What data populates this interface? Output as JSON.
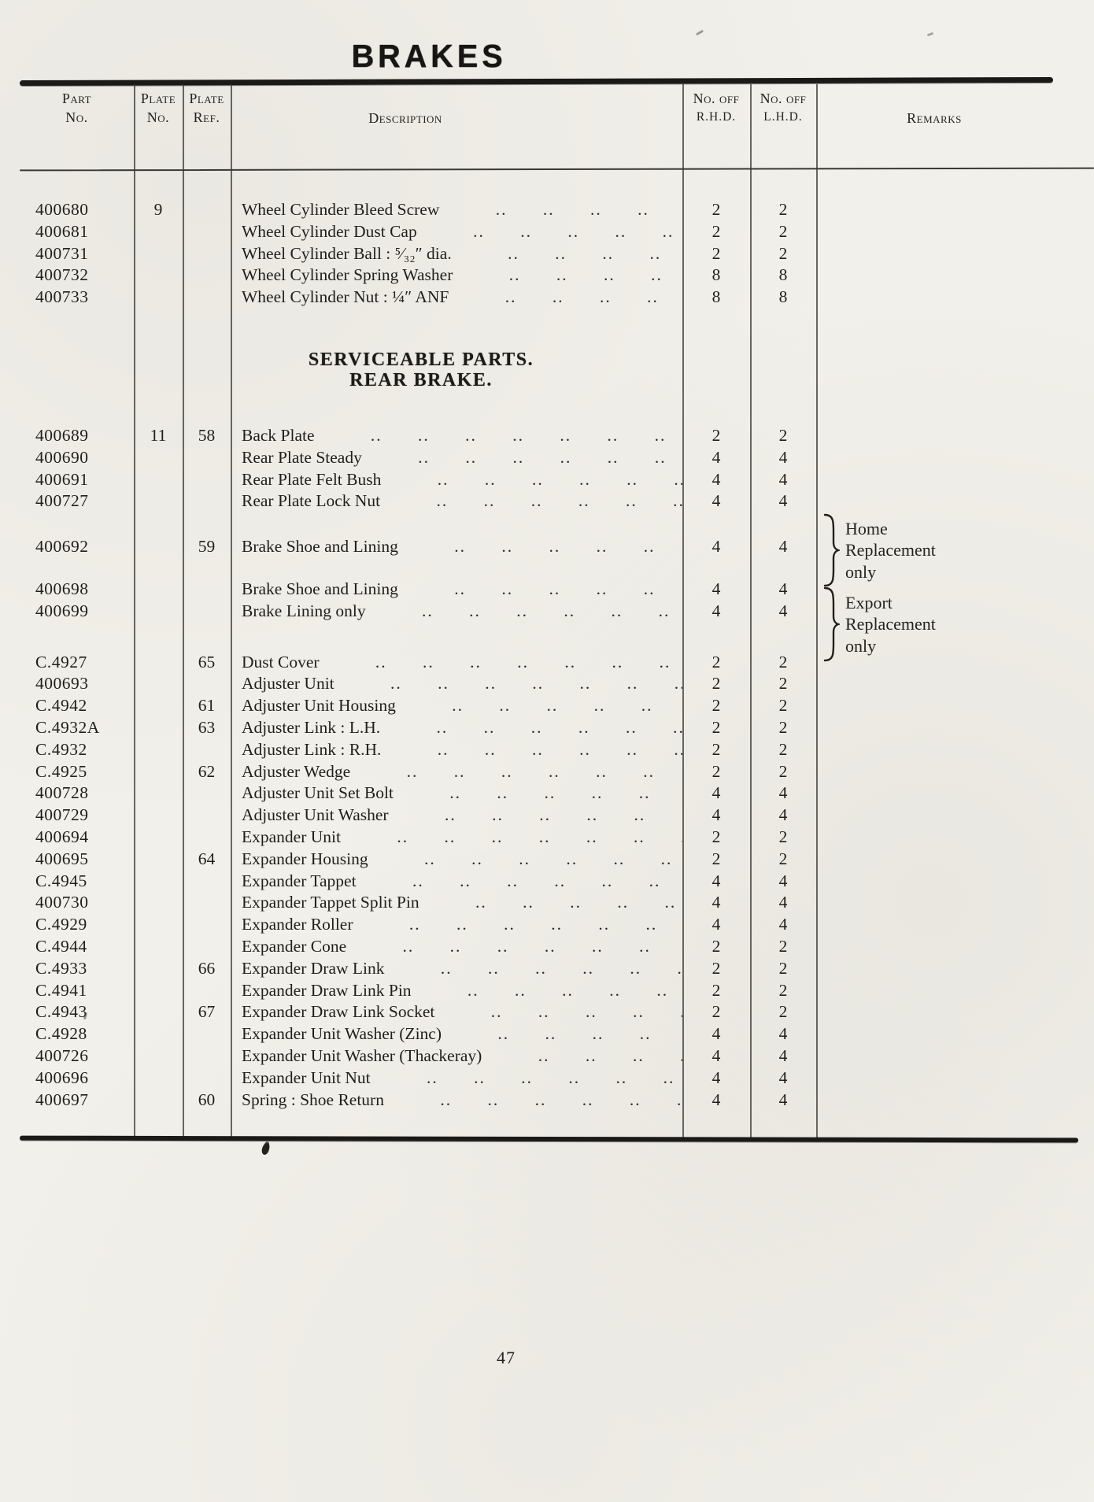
{
  "page": {
    "title": "BRAKES",
    "page_number": "47"
  },
  "table": {
    "headers": {
      "part": {
        "l1": "Part",
        "l2": "No."
      },
      "plate": {
        "l1": "Plate",
        "l2": "No."
      },
      "ref": {
        "l1": "Plate",
        "l2": "Ref."
      },
      "desc": {
        "l1": "Description"
      },
      "rhd": {
        "l1": "No. off",
        "l2": "R.H.D."
      },
      "lhd": {
        "l1": "No. off",
        "l2": "L.H.D."
      },
      "remarks": {
        "l1": "Remarks"
      }
    },
    "sections": [
      {
        "type": "items",
        "rows": [
          {
            "part": "400680",
            "plate": "9",
            "ref": "",
            "desc": "Wheel Cylinder Bleed Screw",
            "rhd": "2",
            "lhd": "2"
          },
          {
            "part": "400681",
            "plate": "",
            "ref": "",
            "desc": "Wheel Cylinder Dust Cap",
            "rhd": "2",
            "lhd": "2"
          },
          {
            "part": "400731",
            "plate": "",
            "ref": "",
            "desc": "Wheel Cylinder Ball :  ⁵⁄₃₂″ dia.",
            "rhd": "2",
            "lhd": "2"
          },
          {
            "part": "400732",
            "plate": "",
            "ref": "",
            "desc": "Wheel Cylinder Spring Washer",
            "rhd": "8",
            "lhd": "8"
          },
          {
            "part": "400733",
            "plate": "",
            "ref": "",
            "desc": "Wheel Cylinder Nut :  ¼″ ANF",
            "rhd": "8",
            "lhd": "8"
          }
        ]
      },
      {
        "type": "heading",
        "lines": [
          "SERVICEABLE PARTS.",
          "REAR BRAKE."
        ]
      },
      {
        "type": "items",
        "rows": [
          {
            "part": "400689",
            "plate": "11",
            "ref": "58",
            "desc": "Back Plate",
            "rhd": "2",
            "lhd": "2"
          },
          {
            "part": "400690",
            "plate": "",
            "ref": "",
            "desc": "Rear Plate Steady",
            "rhd": "4",
            "lhd": "4"
          },
          {
            "part": "400691",
            "plate": "",
            "ref": "",
            "desc": "Rear Plate Felt Bush",
            "rhd": "4",
            "lhd": "4"
          },
          {
            "part": "400727",
            "plate": "",
            "ref": "",
            "desc": "Rear Plate Lock Nut",
            "rhd": "4",
            "lhd": "4"
          }
        ]
      },
      {
        "type": "items",
        "rows": [
          {
            "part": "400692",
            "plate": "",
            "ref": "59",
            "desc": "Brake Shoe and Lining",
            "rhd": "4",
            "lhd": "4"
          }
        ]
      },
      {
        "type": "items",
        "rows": [
          {
            "part": "400698",
            "plate": "",
            "ref": "",
            "desc": "Brake Shoe and Lining",
            "rhd": "4",
            "lhd": "4"
          },
          {
            "part": "400699",
            "plate": "",
            "ref": "",
            "desc": "Brake Lining only",
            "rhd": "4",
            "lhd": "4"
          }
        ]
      },
      {
        "type": "items",
        "rows": [
          {
            "part": "C.4927",
            "plate": "",
            "ref": "65",
            "desc": "Dust Cover",
            "rhd": "2",
            "lhd": "2"
          },
          {
            "part": "400693",
            "plate": "",
            "ref": "",
            "desc": "Adjuster Unit",
            "rhd": "2",
            "lhd": "2"
          },
          {
            "part": "C.4942",
            "plate": "",
            "ref": "61",
            "desc": "Adjuster Unit Housing",
            "rhd": "2",
            "lhd": "2"
          },
          {
            "part": "C.4932A",
            "plate": "",
            "ref": "63",
            "desc": "Adjuster Link :  L.H.",
            "rhd": "2",
            "lhd": "2"
          },
          {
            "part": "C.4932",
            "plate": "",
            "ref": "",
            "desc": "Adjuster Link :  R.H.",
            "rhd": "2",
            "lhd": "2"
          },
          {
            "part": "C.4925",
            "plate": "",
            "ref": "62",
            "desc": "Adjuster Wedge",
            "rhd": "2",
            "lhd": "2"
          },
          {
            "part": "400728",
            "plate": "",
            "ref": "",
            "desc": "Adjuster Unit Set Bolt",
            "rhd": "4",
            "lhd": "4"
          },
          {
            "part": "400729",
            "plate": "",
            "ref": "",
            "desc": "Adjuster Unit Washer",
            "rhd": "4",
            "lhd": "4"
          },
          {
            "part": "400694",
            "plate": "",
            "ref": "",
            "desc": "Expander Unit",
            "rhd": "2",
            "lhd": "2"
          },
          {
            "part": "400695",
            "plate": "",
            "ref": "64",
            "desc": "Expander Housing",
            "rhd": "2",
            "lhd": "2"
          },
          {
            "part": "C.4945",
            "plate": "",
            "ref": "",
            "desc": "Expander Tappet",
            "rhd": "4",
            "lhd": "4"
          },
          {
            "part": "400730",
            "plate": "",
            "ref": "",
            "desc": "Expander Tappet Split Pin",
            "rhd": "4",
            "lhd": "4"
          },
          {
            "part": "C.4929",
            "plate": "",
            "ref": "",
            "desc": "Expander Roller",
            "rhd": "4",
            "lhd": "4"
          },
          {
            "part": "C.4944",
            "plate": "",
            "ref": "",
            "desc": "Expander Cone",
            "rhd": "2",
            "lhd": "2"
          },
          {
            "part": "C.4933",
            "plate": "",
            "ref": "66",
            "desc": "Expander Draw Link",
            "rhd": "2",
            "lhd": "2"
          },
          {
            "part": "C.4941",
            "plate": "",
            "ref": "",
            "desc": "Expander Draw Link Pin",
            "rhd": "2",
            "lhd": "2"
          },
          {
            "part": "C.4943",
            "plate": "",
            "ref": "67",
            "desc": "Expander Draw Link Socket",
            "rhd": "2",
            "lhd": "2"
          },
          {
            "part": "C.4928",
            "plate": "",
            "ref": "",
            "desc": "Expander Unit Washer (Zinc)",
            "rhd": "4",
            "lhd": "4"
          },
          {
            "part": "400726",
            "plate": "",
            "ref": "",
            "desc": "Expander Unit Washer (Thackeray)",
            "rhd": "4",
            "lhd": "4"
          },
          {
            "part": "400696",
            "plate": "",
            "ref": "",
            "desc": "Expander Unit Nut",
            "rhd": "4",
            "lhd": "4"
          },
          {
            "part": "400697",
            "plate": "",
            "ref": "60",
            "desc": "Spring :  Shoe Return",
            "rhd": "4",
            "lhd": "4"
          }
        ]
      }
    ],
    "remarks": [
      {
        "lines": [
          "Home",
          "Replacement",
          "only"
        ]
      },
      {
        "lines": [
          "Export",
          "Replacement",
          "only"
        ]
      }
    ]
  }
}
